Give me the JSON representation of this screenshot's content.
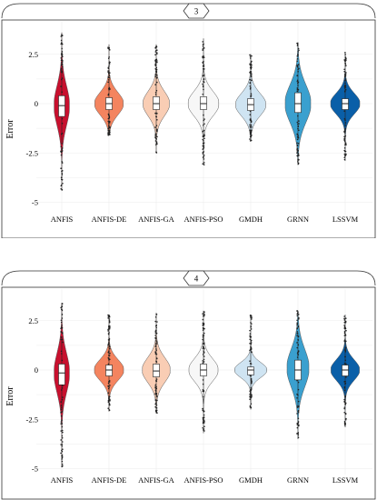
{
  "chart_data": [
    {
      "type": "violin",
      "facet_label": "3",
      "categories": [
        "ANFIS",
        "ANFIS-DE",
        "ANFIS-GA",
        "ANFIS-PSO",
        "GMDH",
        "GRNN",
        "LSSVM"
      ],
      "ylabel": "Error",
      "xlabel": "",
      "yticks": [
        2.5,
        0,
        -2.5,
        -5
      ],
      "ytick_labels": [
        "2.5",
        "0",
        "-2.5",
        "-5"
      ],
      "ylim": [
        -5.3,
        3.8
      ],
      "grid": true,
      "colors": [
        "#c8102e",
        "#f4845f",
        "#f9cdb4",
        "#f7f7f7",
        "#cfe4f2",
        "#3aa0cf",
        "#0a5fa8"
      ],
      "series": [
        {
          "name": "ANFIS",
          "min": -4.4,
          "q1": -0.65,
          "median": -0.1,
          "q3": 0.4,
          "max": 3.6,
          "mode": -0.1,
          "width": 0.42
        },
        {
          "name": "ANFIS-DE",
          "min": -1.6,
          "q1": -0.3,
          "median": 0.0,
          "q3": 0.3,
          "max": 3.0,
          "mode": 0.0,
          "width": 0.78
        },
        {
          "name": "ANFIS-GA",
          "min": -2.5,
          "q1": -0.3,
          "median": 0.0,
          "q3": 0.35,
          "max": 3.0,
          "mode": 0.0,
          "width": 0.72
        },
        {
          "name": "ANFIS-PSO",
          "min": -3.1,
          "q1": -0.3,
          "median": 0.0,
          "q3": 0.35,
          "max": 3.3,
          "mode": 0.0,
          "width": 0.84
        },
        {
          "name": "GMDH",
          "min": -1.9,
          "q1": -0.35,
          "median": -0.05,
          "q3": 0.25,
          "max": 2.5,
          "mode": -0.05,
          "width": 0.82
        },
        {
          "name": "GRNN",
          "min": -3.1,
          "q1": -0.45,
          "median": 0.0,
          "q3": 0.55,
          "max": 3.1,
          "mode": 0.0,
          "width": 0.7
        },
        {
          "name": "LSSVM",
          "min": -2.9,
          "q1": -0.3,
          "median": 0.0,
          "q3": 0.25,
          "max": 2.6,
          "mode": 0.0,
          "width": 0.8
        }
      ]
    },
    {
      "type": "violin",
      "facet_label": "4",
      "categories": [
        "ANFIS",
        "ANFIS-DE",
        "ANFIS-GA",
        "ANFIS-PSO",
        "GMDH",
        "GRNN",
        "LSSVM"
      ],
      "ylabel": "Error",
      "xlabel": "",
      "yticks": [
        2.5,
        0,
        -2.5,
        -5
      ],
      "ytick_labels": [
        "2.5",
        "0",
        "-2.5",
        "-5"
      ],
      "ylim": [
        -5.3,
        3.8
      ],
      "grid": true,
      "colors": [
        "#c8102e",
        "#f4845f",
        "#f9cdb4",
        "#f7f7f7",
        "#cfe4f2",
        "#3aa0cf",
        "#0a5fa8"
      ],
      "series": [
        {
          "name": "ANFIS",
          "min": -4.9,
          "q1": -0.75,
          "median": -0.15,
          "q3": 0.3,
          "max": 3.4,
          "mode": -0.15,
          "width": 0.42
        },
        {
          "name": "ANFIS-DE",
          "min": -2.1,
          "q1": -0.3,
          "median": 0.0,
          "q3": 0.25,
          "max": 2.8,
          "mode": 0.0,
          "width": 0.8
        },
        {
          "name": "ANFIS-GA",
          "min": -2.2,
          "q1": -0.35,
          "median": -0.05,
          "q3": 0.3,
          "max": 2.9,
          "mode": 0.0,
          "width": 0.76
        },
        {
          "name": "ANFIS-PSO",
          "min": -3.2,
          "q1": -0.3,
          "median": 0.0,
          "q3": 0.3,
          "max": 3.0,
          "mode": 0.0,
          "width": 0.8
        },
        {
          "name": "GMDH",
          "min": -2.0,
          "q1": -0.25,
          "median": 0.0,
          "q3": 0.15,
          "max": 2.8,
          "mode": 0.0,
          "width": 0.88
        },
        {
          "name": "GRNN",
          "min": -3.5,
          "q1": -0.5,
          "median": 0.0,
          "q3": 0.5,
          "max": 3.0,
          "mode": 0.1,
          "width": 0.6
        },
        {
          "name": "LSSVM",
          "min": -2.9,
          "q1": -0.3,
          "median": 0.0,
          "q3": 0.25,
          "max": 2.8,
          "mode": 0.0,
          "width": 0.78
        }
      ]
    }
  ]
}
